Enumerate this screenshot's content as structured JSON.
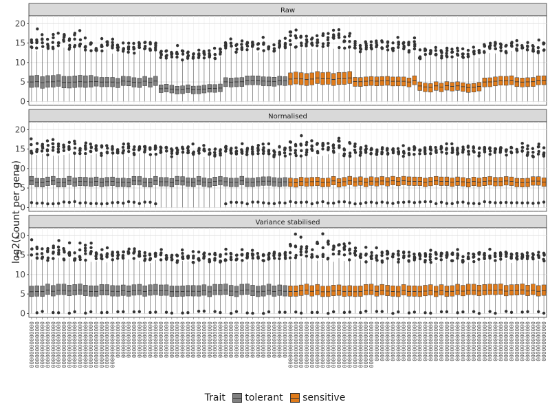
{
  "chart_data": {
    "type": "boxplot",
    "ylabel": "log2(Count per gene)",
    "ylim": [
      0,
      21
    ],
    "yticks": [
      0,
      5,
      10,
      15,
      20
    ],
    "legend": {
      "title": "Trait",
      "position": "bottom",
      "entries": [
        {
          "name": "tolerant",
          "color": "#808080"
        },
        {
          "name": "sensitive",
          "color": "#e07b1a"
        }
      ]
    },
    "sample_count": 96,
    "tolerant_sample_count": 48,
    "sample_label_char": "0",
    "panels": [
      {
        "title": "Raw",
        "group_values": [
          {
            "median": 5.0,
            "q1": 3.6,
            "q3": 6.6,
            "whisker_high": 13.5,
            "outlier_high": 19.0
          },
          {
            "median": 5.0,
            "q1": 3.8,
            "q3": 6.2,
            "whisker_high": 12.8,
            "outlier_high": 16.5
          },
          {
            "median": 3.2,
            "q1": 2.2,
            "q3": 4.2,
            "whisker_high": 11.2,
            "outlier_high": 14.5
          },
          {
            "median": 5.2,
            "q1": 4.0,
            "q3": 6.3,
            "whisker_high": 13.2,
            "outlier_high": 16.5
          },
          {
            "median": 5.8,
            "q1": 4.3,
            "q3": 7.4,
            "whisker_high": 13.8,
            "outlier_high": 19.5
          },
          {
            "median": 5.2,
            "q1": 4.0,
            "q3": 6.3,
            "whisker_high": 13.0,
            "outlier_high": 16.5
          },
          {
            "median": 3.8,
            "q1": 2.6,
            "q3": 4.8,
            "whisker_high": 11.5,
            "outlier_high": 14.0
          },
          {
            "median": 5.2,
            "q1": 4.0,
            "q3": 6.3,
            "whisker_high": 12.8,
            "outlier_high": 16.0
          }
        ]
      },
      {
        "title": "Normalised",
        "group_values": [
          {
            "median": 6.6,
            "q1": 5.5,
            "q3": 7.7,
            "whisker_high": 13.5,
            "outlier_high": 18.0,
            "outlier_low": 1.2
          },
          {
            "median": 6.6,
            "q1": 5.5,
            "q3": 7.7,
            "whisker_high": 13.5,
            "outlier_high": 17.0,
            "outlier_low": 1.2
          },
          {
            "median": 6.6,
            "q1": 5.5,
            "q3": 7.7,
            "whisker_high": 13.5,
            "outlier_high": 16.5
          },
          {
            "median": 6.6,
            "q1": 5.5,
            "q3": 7.7,
            "whisker_high": 13.5,
            "outlier_high": 16.5,
            "outlier_low": 1.2
          },
          {
            "median": 6.6,
            "q1": 5.5,
            "q3": 7.7,
            "whisker_high": 13.5,
            "outlier_high": 18.5,
            "outlier_low": 1.2
          },
          {
            "median": 6.6,
            "q1": 5.5,
            "q3": 7.7,
            "whisker_high": 13.5,
            "outlier_high": 16.5,
            "outlier_low": 1.2
          },
          {
            "median": 6.6,
            "q1": 5.5,
            "q3": 7.7,
            "whisker_high": 13.5,
            "outlier_high": 16.5,
            "outlier_low": 1.2
          },
          {
            "median": 6.6,
            "q1": 5.5,
            "q3": 7.7,
            "whisker_high": 13.5,
            "outlier_high": 16.5,
            "outlier_low": 1.2
          }
        ]
      },
      {
        "title": "Variance stabilised",
        "group_values": [
          {
            "median": 5.8,
            "q1": 4.6,
            "q3": 7.3,
            "whisker_high": 13.8,
            "outlier_high": 19.5,
            "outlier_low": 0.3
          },
          {
            "median": 5.8,
            "q1": 4.6,
            "q3": 7.3,
            "whisker_high": 13.5,
            "outlier_high": 17.0,
            "outlier_low": 0.3
          },
          {
            "median": 5.8,
            "q1": 4.6,
            "q3": 7.3,
            "whisker_high": 13.5,
            "outlier_high": 16.5,
            "outlier_low": 0.3
          },
          {
            "median": 5.8,
            "q1": 4.6,
            "q3": 7.3,
            "whisker_high": 13.5,
            "outlier_high": 16.5,
            "outlier_low": 0.3
          },
          {
            "median": 5.8,
            "q1": 4.6,
            "q3": 7.3,
            "whisker_high": 13.8,
            "outlier_high": 20.5,
            "outlier_low": 0.3
          },
          {
            "median": 5.8,
            "q1": 4.6,
            "q3": 7.3,
            "whisker_high": 13.5,
            "outlier_high": 17.0,
            "outlier_low": 0.3
          },
          {
            "median": 5.8,
            "q1": 4.6,
            "q3": 7.3,
            "whisker_high": 13.5,
            "outlier_high": 16.5,
            "outlier_low": 0.3
          },
          {
            "median": 5.8,
            "q1": 4.6,
            "q3": 7.3,
            "whisker_high": 13.5,
            "outlier_high": 16.5,
            "outlier_low": 0.3
          }
        ]
      }
    ]
  }
}
